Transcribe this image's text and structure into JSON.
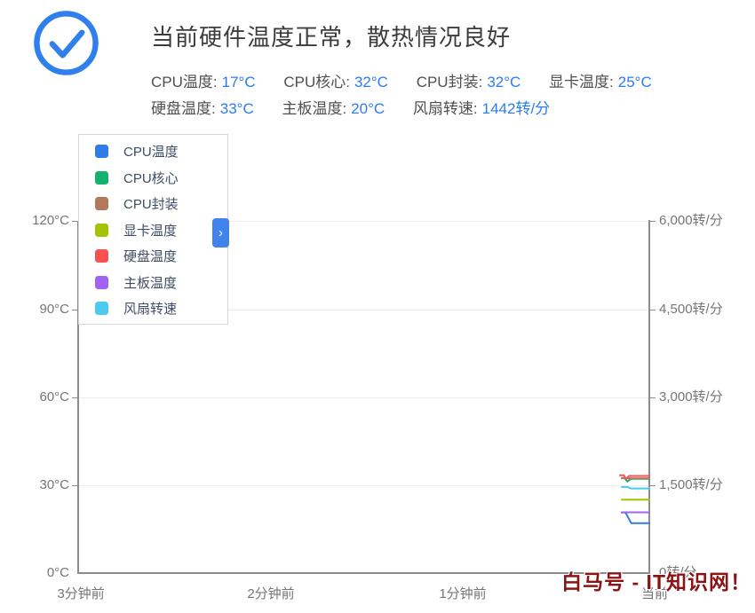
{
  "header": {
    "title": "当前硬件温度正常，散热情况良好",
    "status_icon": "check-circle",
    "accent_color": "#2b7cef",
    "stats": [
      {
        "label": "CPU温度:",
        "value": "17°C"
      },
      {
        "label": "CPU核心:",
        "value": "32°C"
      },
      {
        "label": "CPU封装:",
        "value": "32°C"
      },
      {
        "label": "显卡温度:",
        "value": "25°C"
      },
      {
        "label": "硬盘温度:",
        "value": "33°C"
      },
      {
        "label": "主板温度:",
        "value": "20°C"
      },
      {
        "label": "风扇转速:",
        "value": "1442转/分"
      }
    ]
  },
  "legend": {
    "items": [
      {
        "label": "CPU温度",
        "color": "#2e7ce8"
      },
      {
        "label": "CPU核心",
        "color": "#13b26f"
      },
      {
        "label": "CPU封装",
        "color": "#b4795b"
      },
      {
        "label": "显卡温度",
        "color": "#a2c405"
      },
      {
        "label": "硬盘温度",
        "color": "#f85252"
      },
      {
        "label": "主板温度",
        "color": "#a263f5"
      },
      {
        "label": "风扇转速",
        "color": "#4bcbef"
      }
    ],
    "collapse_glyph": "›"
  },
  "watermark": {
    "text": "白马号 - IT知识网！",
    "color": "#8b1313"
  },
  "chart_data": {
    "type": "line",
    "title": "",
    "grid": true,
    "legend_position": "top-left",
    "x_axis": {
      "labels": [
        "3分钟前",
        "2分钟前",
        "1分钟前",
        "当前"
      ],
      "span_minutes": 3
    },
    "y_axis_left": {
      "unit": "°C",
      "range": [
        0,
        120
      ],
      "labels_top_down": [
        "120°C",
        "90°C",
        "60°C",
        "30°C",
        "0°C"
      ]
    },
    "y_axis_right": {
      "unit": "转/分",
      "range": [
        0,
        6000
      ],
      "labels_top_down": [
        "6,000转/分",
        "4,500转/分",
        "3,000转/分",
        "1,500转/分",
        "0转/分"
      ]
    },
    "series": [
      {
        "name": "CPU温度",
        "axis": "left",
        "color": "#2e7ce8",
        "current": 17,
        "points": [
          [
            0.949,
            20.6
          ],
          [
            0.957,
            20.6
          ],
          [
            0.967,
            17.0
          ],
          [
            1.0,
            17.0
          ]
        ]
      },
      {
        "name": "CPU核心",
        "axis": "left",
        "color": "#13b26f",
        "current": 32,
        "points": [
          [
            0.949,
            32.4
          ],
          [
            0.955,
            32.4
          ],
          [
            0.96,
            31.2
          ],
          [
            0.966,
            32.1
          ],
          [
            1.0,
            32.1
          ]
        ]
      },
      {
        "name": "CPU封装",
        "axis": "left",
        "color": "#b4795b",
        "current": 32,
        "points": [
          [
            0.949,
            32.3
          ],
          [
            1.0,
            32.3
          ]
        ]
      },
      {
        "name": "显卡温度",
        "axis": "left",
        "color": "#a2c405",
        "current": 25,
        "points": [
          [
            0.949,
            25.0
          ],
          [
            1.0,
            25.0
          ]
        ]
      },
      {
        "name": "硬盘温度",
        "axis": "left",
        "color": "#f85252",
        "current": 33,
        "points": [
          [
            0.946,
            33.3
          ],
          [
            0.954,
            33.3
          ],
          [
            0.958,
            32.0
          ],
          [
            0.963,
            33.1
          ],
          [
            1.0,
            33.1
          ]
        ]
      },
      {
        "name": "主板温度",
        "axis": "left",
        "color": "#a263f5",
        "current": 20,
        "points": [
          [
            0.949,
            20.7
          ],
          [
            1.0,
            20.7
          ]
        ]
      },
      {
        "name": "风扇转速",
        "axis": "right",
        "color": "#4bcbef",
        "current": 1442,
        "points": [
          [
            0.949,
            1468
          ],
          [
            0.96,
            1468
          ],
          [
            0.966,
            1442
          ],
          [
            1.0,
            1442
          ]
        ]
      }
    ]
  }
}
